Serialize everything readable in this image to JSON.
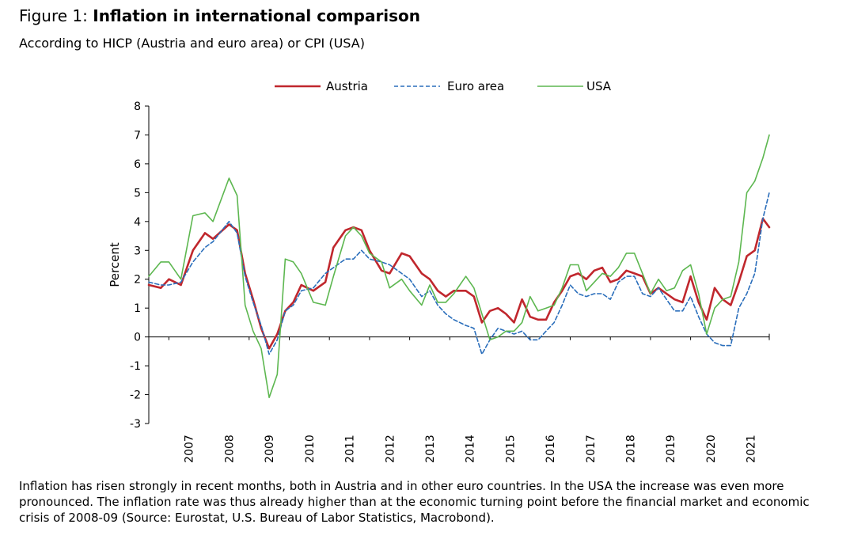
{
  "figure": {
    "title_prefix": "Figure 1: ",
    "title_main": "Inflation in international comparison",
    "subtitle": "According to HICP (Austria and euro area) or CPI (USA)",
    "caption": "Inflation has risen strongly in recent months, both in Austria and in other euro countries. In the USA the increase was even more pronounced. The inflation rate was thus already higher than at the economic turning point before the financial market and economic crisis of 2008-09 (Source: Eurostat, U.S. Bureau of Labor Statistics, Macrobond)."
  },
  "chart_data": {
    "type": "line",
    "title": "Inflation in international comparison",
    "ylabel": "Percent",
    "ylim": [
      -3,
      8
    ],
    "yticks": [
      -3,
      -2,
      -1,
      0,
      1,
      2,
      3,
      4,
      5,
      6,
      7,
      8
    ],
    "xlim": [
      2006.5,
      2021.96
    ],
    "xticks": [
      "2007",
      "2008",
      "2009",
      "2010",
      "2011",
      "2012",
      "2013",
      "2014",
      "2015",
      "2016",
      "2017",
      "2018",
      "2019",
      "2020",
      "2021"
    ],
    "legend_position": "top",
    "grid": false,
    "series": [
      {
        "name": "Austria",
        "color": "#c0272d",
        "dash": "solid",
        "points": [
          [
            2006.5,
            1.8
          ],
          [
            2006.8,
            1.7
          ],
          [
            2007.0,
            2.0
          ],
          [
            2007.3,
            1.8
          ],
          [
            2007.6,
            3.0
          ],
          [
            2007.9,
            3.6
          ],
          [
            2008.1,
            3.4
          ],
          [
            2008.5,
            3.9
          ],
          [
            2008.7,
            3.7
          ],
          [
            2008.9,
            2.2
          ],
          [
            2009.1,
            1.3
          ],
          [
            2009.3,
            0.3
          ],
          [
            2009.5,
            -0.4
          ],
          [
            2009.7,
            0.1
          ],
          [
            2009.9,
            0.9
          ],
          [
            2010.1,
            1.2
          ],
          [
            2010.3,
            1.8
          ],
          [
            2010.6,
            1.6
          ],
          [
            2010.9,
            1.9
          ],
          [
            2011.1,
            3.1
          ],
          [
            2011.4,
            3.7
          ],
          [
            2011.6,
            3.8
          ],
          [
            2011.8,
            3.7
          ],
          [
            2012.0,
            3.0
          ],
          [
            2012.3,
            2.3
          ],
          [
            2012.5,
            2.2
          ],
          [
            2012.8,
            2.9
          ],
          [
            2013.0,
            2.8
          ],
          [
            2013.3,
            2.2
          ],
          [
            2013.5,
            2.0
          ],
          [
            2013.7,
            1.6
          ],
          [
            2013.9,
            1.4
          ],
          [
            2014.1,
            1.6
          ],
          [
            2014.4,
            1.6
          ],
          [
            2014.6,
            1.4
          ],
          [
            2014.8,
            0.5
          ],
          [
            2015.0,
            0.9
          ],
          [
            2015.2,
            1.0
          ],
          [
            2015.4,
            0.8
          ],
          [
            2015.6,
            0.5
          ],
          [
            2015.8,
            1.3
          ],
          [
            2016.0,
            0.7
          ],
          [
            2016.2,
            0.6
          ],
          [
            2016.4,
            0.6
          ],
          [
            2016.6,
            1.2
          ],
          [
            2016.8,
            1.6
          ],
          [
            2017.0,
            2.1
          ],
          [
            2017.2,
            2.2
          ],
          [
            2017.4,
            2.0
          ],
          [
            2017.6,
            2.3
          ],
          [
            2017.8,
            2.4
          ],
          [
            2018.0,
            1.9
          ],
          [
            2018.2,
            2.0
          ],
          [
            2018.4,
            2.3
          ],
          [
            2018.6,
            2.2
          ],
          [
            2018.8,
            2.1
          ],
          [
            2019.0,
            1.5
          ],
          [
            2019.2,
            1.7
          ],
          [
            2019.4,
            1.5
          ],
          [
            2019.6,
            1.3
          ],
          [
            2019.8,
            1.2
          ],
          [
            2020.0,
            2.1
          ],
          [
            2020.2,
            1.2
          ],
          [
            2020.4,
            0.6
          ],
          [
            2020.6,
            1.7
          ],
          [
            2020.8,
            1.3
          ],
          [
            2021.0,
            1.1
          ],
          [
            2021.2,
            1.9
          ],
          [
            2021.4,
            2.8
          ],
          [
            2021.6,
            3.0
          ],
          [
            2021.8,
            4.1
          ],
          [
            2021.96,
            3.8
          ]
        ]
      },
      {
        "name": "Euro area",
        "color": "#2a6ebb",
        "dash": "dashed",
        "points": [
          [
            2006.5,
            1.9
          ],
          [
            2006.8,
            1.8
          ],
          [
            2007.0,
            1.8
          ],
          [
            2007.3,
            1.9
          ],
          [
            2007.6,
            2.6
          ],
          [
            2007.9,
            3.1
          ],
          [
            2008.1,
            3.3
          ],
          [
            2008.5,
            4.0
          ],
          [
            2008.7,
            3.6
          ],
          [
            2008.9,
            2.1
          ],
          [
            2009.1,
            1.2
          ],
          [
            2009.3,
            0.4
          ],
          [
            2009.5,
            -0.6
          ],
          [
            2009.7,
            -0.1
          ],
          [
            2009.9,
            0.9
          ],
          [
            2010.1,
            1.1
          ],
          [
            2010.3,
            1.6
          ],
          [
            2010.6,
            1.7
          ],
          [
            2010.9,
            2.2
          ],
          [
            2011.1,
            2.4
          ],
          [
            2011.4,
            2.7
          ],
          [
            2011.6,
            2.7
          ],
          [
            2011.8,
            3.0
          ],
          [
            2012.0,
            2.7
          ],
          [
            2012.3,
            2.6
          ],
          [
            2012.5,
            2.5
          ],
          [
            2012.8,
            2.2
          ],
          [
            2013.0,
            2.0
          ],
          [
            2013.3,
            1.4
          ],
          [
            2013.5,
            1.6
          ],
          [
            2013.7,
            1.1
          ],
          [
            2013.9,
            0.8
          ],
          [
            2014.1,
            0.6
          ],
          [
            2014.4,
            0.4
          ],
          [
            2014.6,
            0.3
          ],
          [
            2014.8,
            -0.6
          ],
          [
            2015.0,
            -0.1
          ],
          [
            2015.2,
            0.3
          ],
          [
            2015.4,
            0.2
          ],
          [
            2015.6,
            0.1
          ],
          [
            2015.8,
            0.2
          ],
          [
            2016.0,
            -0.1
          ],
          [
            2016.2,
            -0.1
          ],
          [
            2016.4,
            0.2
          ],
          [
            2016.6,
            0.5
          ],
          [
            2016.8,
            1.1
          ],
          [
            2017.0,
            1.8
          ],
          [
            2017.2,
            1.5
          ],
          [
            2017.4,
            1.4
          ],
          [
            2017.6,
            1.5
          ],
          [
            2017.8,
            1.5
          ],
          [
            2018.0,
            1.3
          ],
          [
            2018.2,
            1.9
          ],
          [
            2018.4,
            2.1
          ],
          [
            2018.6,
            2.1
          ],
          [
            2018.8,
            1.5
          ],
          [
            2019.0,
            1.4
          ],
          [
            2019.2,
            1.7
          ],
          [
            2019.4,
            1.3
          ],
          [
            2019.6,
            0.9
          ],
          [
            2019.8,
            0.9
          ],
          [
            2020.0,
            1.4
          ],
          [
            2020.2,
            0.7
          ],
          [
            2020.4,
            0.1
          ],
          [
            2020.6,
            -0.2
          ],
          [
            2020.8,
            -0.3
          ],
          [
            2021.0,
            -0.3
          ],
          [
            2021.2,
            1.0
          ],
          [
            2021.4,
            1.5
          ],
          [
            2021.6,
            2.2
          ],
          [
            2021.8,
            4.1
          ],
          [
            2021.96,
            5.0
          ]
        ]
      },
      {
        "name": "USA",
        "color": "#5db750",
        "dash": "solid",
        "points": [
          [
            2006.5,
            2.1
          ],
          [
            2006.8,
            2.6
          ],
          [
            2007.0,
            2.6
          ],
          [
            2007.3,
            2.0
          ],
          [
            2007.6,
            4.2
          ],
          [
            2007.9,
            4.3
          ],
          [
            2008.1,
            4.0
          ],
          [
            2008.5,
            5.5
          ],
          [
            2008.7,
            4.9
          ],
          [
            2008.9,
            1.1
          ],
          [
            2009.1,
            0.2
          ],
          [
            2009.3,
            -0.4
          ],
          [
            2009.5,
            -2.1
          ],
          [
            2009.7,
            -1.3
          ],
          [
            2009.9,
            2.7
          ],
          [
            2010.1,
            2.6
          ],
          [
            2010.3,
            2.2
          ],
          [
            2010.6,
            1.2
          ],
          [
            2010.9,
            1.1
          ],
          [
            2011.1,
            2.1
          ],
          [
            2011.4,
            3.5
          ],
          [
            2011.6,
            3.8
          ],
          [
            2011.8,
            3.5
          ],
          [
            2012.0,
            2.9
          ],
          [
            2012.3,
            2.6
          ],
          [
            2012.5,
            1.7
          ],
          [
            2012.8,
            2.0
          ],
          [
            2013.0,
            1.6
          ],
          [
            2013.3,
            1.1
          ],
          [
            2013.5,
            1.8
          ],
          [
            2013.7,
            1.2
          ],
          [
            2013.9,
            1.2
          ],
          [
            2014.1,
            1.5
          ],
          [
            2014.4,
            2.1
          ],
          [
            2014.6,
            1.7
          ],
          [
            2014.8,
            0.8
          ],
          [
            2015.0,
            -0.1
          ],
          [
            2015.2,
            0.0
          ],
          [
            2015.4,
            0.2
          ],
          [
            2015.6,
            0.2
          ],
          [
            2015.8,
            0.5
          ],
          [
            2016.0,
            1.4
          ],
          [
            2016.2,
            0.9
          ],
          [
            2016.4,
            1.0
          ],
          [
            2016.6,
            1.1
          ],
          [
            2016.8,
            1.7
          ],
          [
            2017.0,
            2.5
          ],
          [
            2017.2,
            2.5
          ],
          [
            2017.4,
            1.6
          ],
          [
            2017.6,
            1.9
          ],
          [
            2017.8,
            2.2
          ],
          [
            2018.0,
            2.1
          ],
          [
            2018.2,
            2.4
          ],
          [
            2018.4,
            2.9
          ],
          [
            2018.6,
            2.9
          ],
          [
            2018.8,
            2.2
          ],
          [
            2019.0,
            1.5
          ],
          [
            2019.2,
            2.0
          ],
          [
            2019.4,
            1.6
          ],
          [
            2019.6,
            1.7
          ],
          [
            2019.8,
            2.3
          ],
          [
            2020.0,
            2.5
          ],
          [
            2020.2,
            1.5
          ],
          [
            2020.4,
            0.1
          ],
          [
            2020.6,
            1.0
          ],
          [
            2020.8,
            1.3
          ],
          [
            2021.0,
            1.4
          ],
          [
            2021.2,
            2.6
          ],
          [
            2021.4,
            5.0
          ],
          [
            2021.6,
            5.4
          ],
          [
            2021.8,
            6.2
          ],
          [
            2021.96,
            7.0
          ]
        ]
      }
    ]
  }
}
